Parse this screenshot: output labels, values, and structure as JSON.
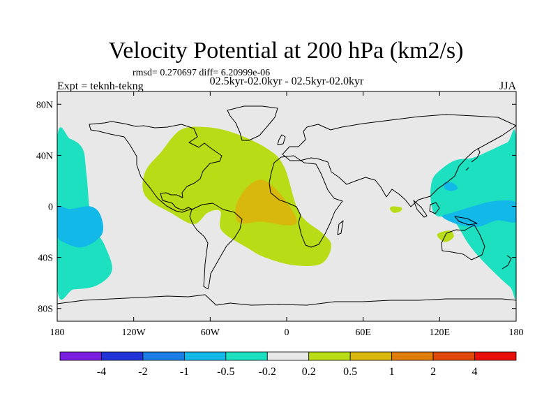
{
  "chart_data": {
    "type": "heatmap",
    "title": "Velocity Potential at 200 hPa (km2/s)",
    "stats": "rmsd= 0.270697 diff= 6.20999e-06",
    "subtitle": "02.5kyr-02.0kyr - 02.5kyr-02.0kyr",
    "left_label": "Expt = teknh-tekng",
    "right_label": "JJA",
    "x_range": [
      -180,
      180
    ],
    "y_range": [
      -90,
      90
    ],
    "x_ticks": [
      {
        "value": -180,
        "label": "180"
      },
      {
        "value": -120,
        "label": "120W"
      },
      {
        "value": -60,
        "label": "60W"
      },
      {
        "value": 0,
        "label": "0"
      },
      {
        "value": 60,
        "label": "60E"
      },
      {
        "value": 120,
        "label": "120E"
      },
      {
        "value": 180,
        "label": "180"
      }
    ],
    "y_ticks": [
      {
        "value": 80,
        "label": "80N"
      },
      {
        "value": 40,
        "label": "40N"
      },
      {
        "value": 0,
        "label": "0"
      },
      {
        "value": -40,
        "label": "40S"
      },
      {
        "value": -80,
        "label": "80S"
      }
    ],
    "colorbar": {
      "colors": [
        "#7a1fe0",
        "#2233d8",
        "#1a7ee6",
        "#12b8e8",
        "#1ce0c0",
        "#e8e8e8",
        "#b8dc16",
        "#d8b80c",
        "#e07c08",
        "#e04808",
        "#e80e0a"
      ],
      "levels": [
        "-4",
        "-2",
        "-1",
        "-0.5",
        "-0.2",
        "0.2",
        "0.5",
        "1",
        "2",
        "4"
      ]
    },
    "background_color": "#e8e8e8",
    "regions": [
      {
        "name": "west-pacific-negative",
        "level": "-0.5 to -0.2",
        "color": "#1ce0c0",
        "points": [
          [
            -180,
            53
          ],
          [
            -170,
            53
          ],
          [
            -160,
            45
          ],
          [
            -157,
            25
          ],
          [
            -153,
            -12
          ],
          [
            -143,
            -30
          ],
          [
            -137,
            -50
          ],
          [
            -149,
            -62
          ],
          [
            -167,
            -65
          ],
          [
            -180,
            -64
          ]
        ]
      },
      {
        "name": "west-pacific-core",
        "level": "-1 to -0.5",
        "color": "#12b8e8",
        "points": [
          [
            -180,
            -1
          ],
          [
            -170,
            -2
          ],
          [
            -154,
            0
          ],
          [
            -146,
            -7
          ],
          [
            -145,
            -22
          ],
          [
            -160,
            -32
          ],
          [
            -175,
            -28
          ],
          [
            -180,
            -22
          ]
        ]
      },
      {
        "name": "east-pacific-negative",
        "level": "-0.5 to -0.2",
        "color": "#1ce0c0",
        "points": [
          [
            180,
            52
          ],
          [
            173,
            50
          ],
          [
            160,
            44
          ],
          [
            146,
            38
          ],
          [
            132,
            36
          ],
          [
            120,
            28
          ],
          [
            114,
            20
          ],
          [
            113,
            5
          ],
          [
            117,
            -7
          ],
          [
            130,
            -10
          ],
          [
            143,
            -30
          ],
          [
            156,
            -45
          ],
          [
            175,
            -63
          ],
          [
            180,
            -64
          ]
        ]
      },
      {
        "name": "east-pacific-core",
        "level": "-1 to -0.5",
        "color": "#12b8e8",
        "points": [
          [
            180,
            3
          ],
          [
            162,
            4
          ],
          [
            146,
            0
          ],
          [
            130,
            -5
          ],
          [
            122,
            -8
          ],
          [
            134,
            -14
          ],
          [
            150,
            -16
          ],
          [
            165,
            -11
          ],
          [
            180,
            -12
          ]
        ]
      },
      {
        "name": "west-pacific-spot",
        "level": "-1 to -0.5",
        "color": "#12b8e8",
        "points": [
          [
            124,
            19
          ],
          [
            131,
            18
          ],
          [
            134,
            14
          ],
          [
            129,
            12
          ],
          [
            124,
            14
          ]
        ]
      },
      {
        "name": "atlantic-positive",
        "level": "0.2 to 0.5",
        "color": "#b8dc16",
        "points": [
          [
            -83,
            60
          ],
          [
            -62,
            62
          ],
          [
            -40,
            57
          ],
          [
            -15,
            45
          ],
          [
            -2,
            31
          ],
          [
            10,
            -5
          ],
          [
            28,
            -21
          ],
          [
            35,
            -31
          ],
          [
            27,
            -45
          ],
          [
            5,
            -46
          ],
          [
            -17,
            -40
          ],
          [
            -30,
            -33
          ],
          [
            -51,
            -19
          ],
          [
            -52,
            -4
          ],
          [
            -62,
            -5
          ],
          [
            -73,
            -14
          ],
          [
            -91,
            -5
          ],
          [
            -108,
            5
          ],
          [
            -113,
            15
          ],
          [
            -110,
            29
          ],
          [
            -99,
            42
          ]
        ]
      },
      {
        "name": "atlantic-core",
        "level": "0.5 to 1",
        "color": "#d8b80c",
        "points": [
          [
            -32,
            14
          ],
          [
            -20,
            21
          ],
          [
            -8,
            13
          ],
          [
            3,
            -1
          ],
          [
            8,
            -12
          ],
          [
            1,
            -15
          ],
          [
            -20,
            -12
          ],
          [
            -37,
            -13
          ],
          [
            -40,
            -1
          ]
        ]
      },
      {
        "name": "indian-ocean-spot",
        "level": "0.2 to 0.5",
        "color": "#b8dc16",
        "points": [
          [
            83,
            0
          ],
          [
            90,
            -1
          ],
          [
            89,
            -4
          ],
          [
            84,
            -5
          ],
          [
            81,
            -2
          ]
        ]
      },
      {
        "name": "australia-spot",
        "level": "0.2 to 0.5",
        "color": "#b8dc16",
        "points": [
          [
            118,
            -22
          ],
          [
            128,
            -19
          ],
          [
            131,
            -24
          ],
          [
            124,
            -28
          ]
        ]
      }
    ]
  }
}
